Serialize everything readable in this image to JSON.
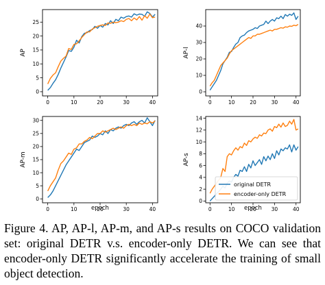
{
  "caption": "Figure 4. AP, AP-l, AP-m, and AP-s results on COCO validation set: original DETR v.s.  encoder-only DETR. We can see that encoder-only DETR significantly accelerate the training of small object detection.",
  "colors": {
    "original": "#1f77b4",
    "encoder_only": "#ff7f0e"
  },
  "chart_data": [
    {
      "type": "line",
      "title": "",
      "xlabel": "",
      "ylabel": "AP",
      "xlim": [
        -2,
        42
      ],
      "ylim": [
        -1.5,
        29.5
      ],
      "xticks": [
        0,
        10,
        20,
        30,
        40
      ],
      "yticks": [
        0,
        5,
        10,
        15,
        20,
        25
      ],
      "grid": false,
      "legend": "none",
      "x": [
        0,
        1,
        2,
        3,
        4,
        5,
        6,
        7,
        8,
        9,
        10,
        11,
        12,
        13,
        14,
        15,
        16,
        17,
        18,
        19,
        20,
        21,
        22,
        23,
        24,
        25,
        26,
        27,
        28,
        29,
        30,
        31,
        32,
        33,
        34,
        35,
        36,
        37,
        38,
        39,
        40,
        41
      ],
      "series": [
        {
          "name": "original DETR",
          "values": [
            0.5,
            1.5,
            3,
            4.3,
            6.2,
            8.5,
            10.5,
            12.5,
            14.8,
            14.5,
            16,
            18.5,
            17.5,
            19.8,
            21,
            21.2,
            22,
            22.3,
            23.5,
            22.8,
            23.8,
            23.2,
            24.5,
            24,
            25.5,
            24.5,
            26,
            25.5,
            26.8,
            26.4,
            27,
            27.2,
            26.8,
            28,
            27.5,
            27.9,
            27.8,
            27.1,
            28.7,
            28.1,
            26.8,
            27.8
          ]
        },
        {
          "name": "encoder-only DETR",
          "values": [
            2.8,
            4.8,
            6,
            6.8,
            9,
            11,
            12,
            12.8,
            15.5,
            15.2,
            17,
            17.2,
            18.3,
            19.5,
            20.5,
            21.5,
            21.5,
            22.5,
            23,
            23.5,
            23.8,
            24,
            23.8,
            24.7,
            24.6,
            25,
            24.8,
            25,
            25.5,
            25.2,
            26,
            26.3,
            25.5,
            26.5,
            25.8,
            27,
            25.7,
            27.3,
            26.4,
            27.9,
            26.6,
            26.8
          ]
        }
      ]
    },
    {
      "type": "line",
      "title": "",
      "xlabel": "",
      "ylabel": "AP-l",
      "xlim": [
        -2,
        42
      ],
      "ylim": [
        -2.5,
        50
      ],
      "xticks": [
        0,
        10,
        20,
        30,
        40
      ],
      "yticks": [
        0,
        10,
        20,
        30,
        40
      ],
      "grid": false,
      "legend": "none",
      "x": [
        0,
        1,
        2,
        3,
        4,
        5,
        6,
        7,
        8,
        9,
        10,
        11,
        12,
        13,
        14,
        15,
        16,
        17,
        18,
        19,
        20,
        21,
        22,
        23,
        24,
        25,
        26,
        27,
        28,
        29,
        30,
        31,
        32,
        33,
        34,
        35,
        36,
        37,
        38,
        39,
        40,
        41
      ],
      "series": [
        {
          "name": "original DETR",
          "values": [
            1,
            3,
            5,
            7,
            10,
            13,
            17,
            19,
            21,
            24,
            24.5,
            27,
            29,
            30,
            33,
            34,
            34.5,
            36,
            37,
            37.5,
            38,
            39,
            38.5,
            40,
            40.5,
            41,
            43,
            41.5,
            43,
            44,
            43,
            45,
            44.5,
            46,
            44.5,
            47,
            46,
            47.2,
            46.5,
            48,
            44,
            46
          ]
        },
        {
          "name": "encoder-only DETR",
          "values": [
            3.5,
            5.5,
            7,
            10,
            13,
            16,
            17.5,
            19,
            20.5,
            23,
            25,
            26,
            27,
            28,
            29,
            30,
            31,
            32,
            33,
            32.5,
            34,
            34,
            35,
            35,
            35.5,
            36,
            36.5,
            37,
            37.5,
            37,
            38,
            38,
            38.5,
            39,
            38.7,
            39.5,
            39.3,
            40,
            39.8,
            40.5,
            40.2,
            41
          ]
        }
      ]
    },
    {
      "type": "line",
      "title": "",
      "xlabel": "epoch",
      "ylabel": "AP-m",
      "xlim": [
        -2,
        42
      ],
      "ylim": [
        -1.5,
        31.5
      ],
      "xticks": [
        0,
        10,
        20,
        30,
        40
      ],
      "yticks": [
        0,
        5,
        10,
        15,
        20,
        25,
        30
      ],
      "grid": false,
      "legend": "none",
      "x": [
        0,
        1,
        2,
        3,
        4,
        5,
        6,
        7,
        8,
        9,
        10,
        11,
        12,
        13,
        14,
        15,
        16,
        17,
        18,
        19,
        20,
        21,
        22,
        23,
        24,
        25,
        26,
        27,
        28,
        29,
        30,
        31,
        32,
        33,
        34,
        35,
        36,
        37,
        38,
        39,
        40,
        41
      ],
      "series": [
        {
          "name": "original DETR",
          "values": [
            0.5,
            1.5,
            3,
            5,
            7,
            9,
            11,
            13,
            14.5,
            16,
            17.5,
            19,
            18.5,
            20,
            21.5,
            22,
            22.5,
            24,
            23.5,
            24,
            25,
            24.5,
            26,
            25,
            26.5,
            26,
            27,
            27.5,
            27,
            28,
            28.5,
            28,
            29,
            29.5,
            28.5,
            29.5,
            30,
            29,
            31,
            29.5,
            28,
            30
          ]
        },
        {
          "name": "encoder-only DETR",
          "values": [
            3,
            5,
            6.5,
            8,
            11,
            13.5,
            14.5,
            16,
            17.5,
            17,
            19,
            19.5,
            21,
            21,
            22,
            22.5,
            23.5,
            23,
            24,
            25,
            25,
            26,
            25.5,
            26,
            26.5,
            27,
            26.5,
            27,
            27.5,
            27,
            28,
            28.5,
            28,
            28.5,
            28,
            29,
            28.5,
            29,
            28.7,
            29.5,
            29,
            29.8
          ]
        }
      ]
    },
    {
      "type": "line",
      "title": "",
      "xlabel": "epoch",
      "ylabel": "AP-s",
      "xlim": [
        -2,
        42
      ],
      "ylim": [
        -0.3,
        14.3
      ],
      "xticks": [
        0,
        10,
        20,
        30,
        40
      ],
      "yticks": [
        0,
        2,
        4,
        6,
        8,
        10,
        12,
        14
      ],
      "grid": false,
      "legend": "bottom-right",
      "x": [
        0,
        1,
        2,
        3,
        4,
        5,
        6,
        7,
        8,
        9,
        10,
        11,
        12,
        13,
        14,
        15,
        16,
        17,
        18,
        19,
        20,
        21,
        22,
        23,
        24,
        25,
        26,
        27,
        28,
        29,
        30,
        31,
        32,
        33,
        34,
        35,
        36,
        37,
        38,
        39,
        40,
        41
      ],
      "series": [
        {
          "name": "original DETR",
          "values": [
            0,
            0.4,
            0.8,
            1.2,
            1.6,
            2,
            2.5,
            2.2,
            3,
            3.4,
            3.2,
            4,
            4.5,
            4.2,
            5.2,
            5,
            5.8,
            5,
            6.2,
            5.6,
            6.8,
            6,
            6.5,
            7,
            6.2,
            7.5,
            6.8,
            7.6,
            7,
            8,
            7.2,
            8.5,
            7.8,
            8.8,
            8.5,
            9,
            8.8,
            9.5,
            8.3,
            9.5,
            8.6,
            9.2
          ]
        },
        {
          "name": "encoder-only DETR",
          "values": [
            1.3,
            2,
            2.5,
            3,
            3.5,
            4,
            5.5,
            5,
            7.5,
            8,
            7.8,
            8.5,
            9,
            8.6,
            9.2,
            9,
            9.8,
            9.4,
            10.2,
            10,
            10.5,
            10.8,
            10.6,
            11.2,
            11,
            11.5,
            11.4,
            12,
            12.2,
            11.8,
            12.6,
            12.4,
            13,
            12.5,
            13.2,
            12.6,
            12.8,
            13.5,
            13,
            13.8,
            12,
            12.2
          ]
        }
      ]
    }
  ]
}
